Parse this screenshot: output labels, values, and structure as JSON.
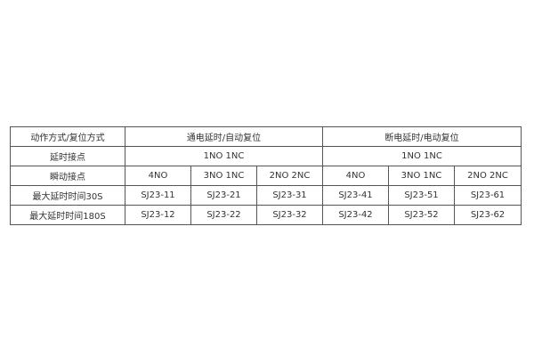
{
  "table": {
    "rows": [
      {
        "label": "动作方式/复位方式",
        "groups": [
          "通电延时/自动复位",
          "断电延时/电动复位"
        ]
      },
      {
        "label": "延时接点",
        "groups": [
          "1NO 1NC",
          "1NO 1NC"
        ]
      },
      {
        "label": "瞬动接点",
        "cells": [
          "4NO",
          "3NO 1NC",
          "2NO 2NC",
          "4NO",
          "3NO 1NC",
          "2NO 2NC"
        ]
      },
      {
        "label": "最大延时时间30S",
        "cells": [
          "SJ23-11",
          "SJ23-21",
          "SJ23-31",
          "SJ23-41",
          "SJ23-51",
          "SJ23-61"
        ]
      },
      {
        "label": "最大延时时间180S",
        "cells": [
          "SJ23-12",
          "SJ23-22",
          "SJ23-32",
          "SJ23-42",
          "SJ23-52",
          "SJ23-62"
        ]
      }
    ]
  }
}
